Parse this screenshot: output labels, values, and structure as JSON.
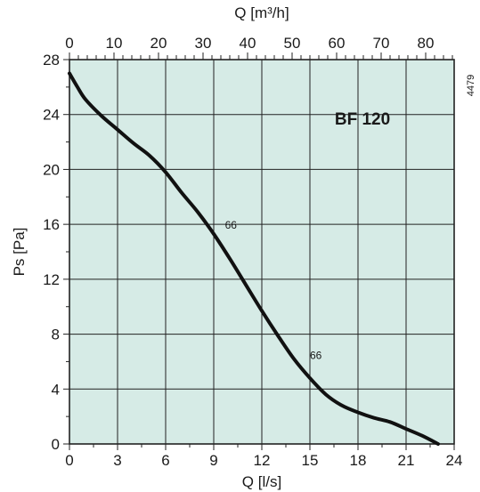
{
  "chart_data": {
    "type": "line",
    "title": "BF 120",
    "code": "4479",
    "xlabel": "Q [l/s]",
    "x2label": "Q [m³/h]",
    "ylabel": "Ps [Pa]",
    "xlim": [
      0,
      24
    ],
    "x2lim": [
      0,
      86.4
    ],
    "ylim": [
      0,
      28
    ],
    "xticks": [
      "0",
      "3",
      "6",
      "9",
      "12",
      "15",
      "18",
      "21",
      "24"
    ],
    "x2ticks": [
      "0",
      "10",
      "20",
      "30",
      "40",
      "50",
      "60",
      "70",
      "80"
    ],
    "yticks": [
      "0",
      "4",
      "8",
      "12",
      "16",
      "20",
      "24",
      "28"
    ],
    "grid": true,
    "colors": {
      "plot_background": "#d6ebe6",
      "grid": "#222222",
      "curve": "#111111"
    },
    "series": [
      {
        "x": [
          0,
          0.5,
          1,
          2,
          3,
          4,
          5,
          6,
          7,
          8,
          9,
          10,
          11,
          12,
          13,
          14,
          15,
          16,
          17,
          18,
          19,
          20,
          21,
          22,
          23
        ],
        "y": [
          27,
          26,
          25.1,
          23.9,
          22.9,
          21.9,
          21,
          19.8,
          18.3,
          16.9,
          15.3,
          13.5,
          11.6,
          9.7,
          7.9,
          6.2,
          4.8,
          3.6,
          2.8,
          2.3,
          1.9,
          1.6,
          1.1,
          0.6,
          0
        ]
      }
    ],
    "annotations": [
      {
        "text": "66",
        "x": 9.7,
        "y": 15.7
      },
      {
        "text": "66",
        "x": 15.0,
        "y": 6.2
      }
    ]
  }
}
